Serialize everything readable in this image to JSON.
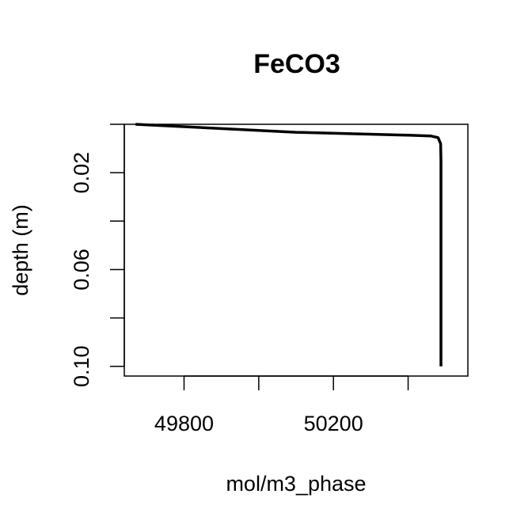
{
  "chart_data": {
    "type": "line",
    "title": "FeCO3",
    "xlabel": "mol/m3_phase",
    "ylabel": "depth (m)",
    "xlim": [
      49640,
      50560
    ],
    "ylim": [
      0.104,
      0
    ],
    "x_ticks": [
      49800,
      50000,
      50200,
      50400
    ],
    "x_tick_labels": [
      "49800",
      "",
      "50200",
      ""
    ],
    "y_ticks": [
      0,
      0.02,
      0.04,
      0.06,
      0.08,
      0.1
    ],
    "y_tick_labels": [
      "",
      "0.02",
      "",
      "0.06",
      "",
      "0.10"
    ],
    "grid": false,
    "legend": "none",
    "series": [
      {
        "color": "#000000",
        "points": [
          {
            "x": 49670,
            "y": 0.0
          },
          {
            "x": 50100,
            "y": 0.0033
          },
          {
            "x": 50400,
            "y": 0.0045
          },
          {
            "x": 50460,
            "y": 0.0048
          },
          {
            "x": 50480,
            "y": 0.0055
          },
          {
            "x": 50487,
            "y": 0.008
          },
          {
            "x": 50488,
            "y": 0.015
          },
          {
            "x": 50488,
            "y": 0.1
          }
        ]
      }
    ]
  }
}
